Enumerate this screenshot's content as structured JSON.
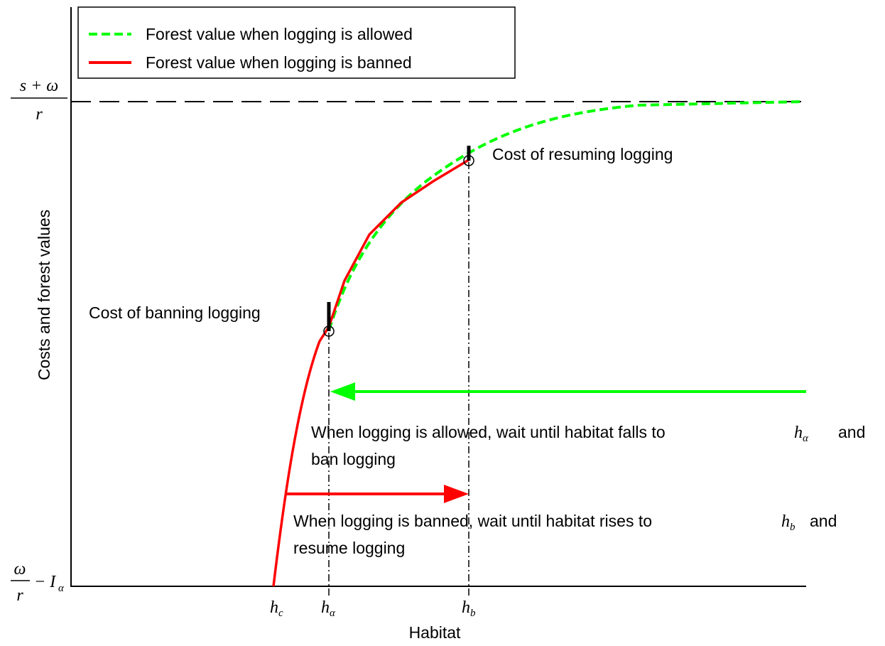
{
  "legend": [
    {
      "label": "Forest value when logging is allowed",
      "color": "#00ff00"
    },
    {
      "label": "Forest value when logging is banned",
      "color": "#ff0000"
    }
  ],
  "y_axis": {
    "title": "Costs and forest values",
    "top_label": {
      "numerator": "s + ω",
      "denominator": "r"
    },
    "bottom_label": {
      "numerator": "ω",
      "denominator": "r",
      "minus": "− I",
      "sub": "α"
    }
  },
  "x_axis": {
    "title": "Habitat",
    "ticks": [
      {
        "base": "h",
        "sub": "c"
      },
      {
        "base": "h",
        "sub": "α"
      },
      {
        "base": "h",
        "sub": "b"
      }
    ]
  },
  "annotations": {
    "cost_resume": "Cost of resuming logging",
    "cost_ban": "Cost of banning logging",
    "allowed": {
      "line1": "When logging is allowed, wait until habitat falls to",
      "symbol": "h",
      "sub": "α",
      "end": "and",
      "line2": "ban logging"
    },
    "banned": {
      "line1": "When logging is banned, wait until habitat rises to",
      "symbol": "h",
      "sub": "b",
      "end": "and",
      "line2": "resume logging"
    }
  }
}
